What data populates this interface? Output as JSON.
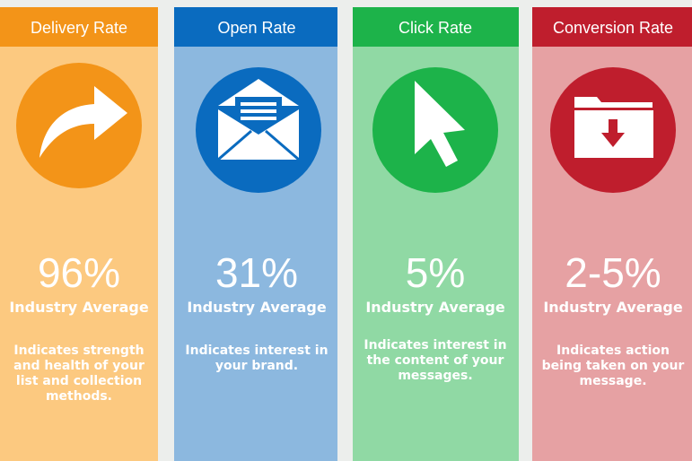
{
  "cards": [
    {
      "title": "Delivery Rate",
      "stat": "96%",
      "label": "Industry Average",
      "description": [
        "Indicates strength",
        "and health of your",
        "list and collection",
        "methods."
      ]
    },
    {
      "title": "Open Rate",
      "stat": "31%",
      "label": "Industry Average",
      "description": [
        "Indicates interest in",
        "your brand."
      ]
    },
    {
      "title": "Click Rate",
      "stat": "5%",
      "label": "Industry Average",
      "description": [
        "Indicates interest in",
        "the content of your",
        "messages."
      ]
    },
    {
      "title": "Conversion Rate",
      "stat": "2-5%",
      "label": "Industry Average",
      "description": [
        "Indicates action",
        "being taken on your",
        "message."
      ]
    }
  ]
}
